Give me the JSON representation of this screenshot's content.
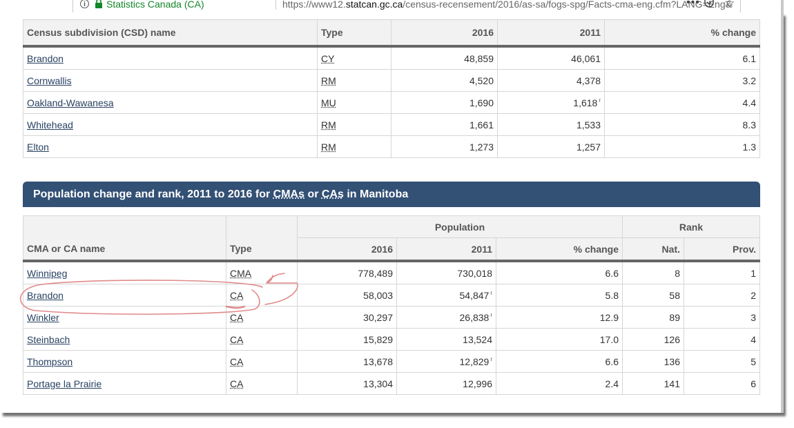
{
  "browser": {
    "site_identity": "Statistics Canada (CA)",
    "url_prefix": "https://www12.",
    "url_domain": "statcan.gc.ca",
    "url_rest": "/census-recensement/2016/as-sa/fogs-spg/Facts-cma-eng.cfm?LANG=Eng&G"
  },
  "csd_table": {
    "headers": [
      "Census subdivision (CSD) name",
      "Type",
      "2016",
      "2011",
      "% change"
    ],
    "rows": [
      {
        "name": "Brandon",
        "type": "CY",
        "pop2016": "48,859",
        "pop2011": "46,061",
        "change": "6.1",
        "note2011": ""
      },
      {
        "name": "Cornwallis",
        "type": "RM",
        "pop2016": "4,520",
        "pop2011": "4,378",
        "change": "3.2",
        "note2011": ""
      },
      {
        "name": "Oakland-Wawanesa",
        "type": "MU",
        "pop2016": "1,690",
        "pop2011": "1,618",
        "change": "4.4",
        "note2011": "r"
      },
      {
        "name": "Whitehead",
        "type": "RM",
        "pop2016": "1,661",
        "pop2011": "1,533",
        "change": "8.3",
        "note2011": ""
      },
      {
        "name": "Elton",
        "type": "RM",
        "pop2016": "1,273",
        "pop2011": "1,257",
        "change": "1.3",
        "note2011": ""
      }
    ]
  },
  "cma_section": {
    "caption_start": "Population change and rank, 2011 to 2016 for ",
    "caption_abbr1": "CMAs",
    "caption_mid": " or ",
    "caption_abbr2": "CAs",
    "caption_end": " in Manitoba"
  },
  "cma_table": {
    "group_population": "Population",
    "group_rank": "Rank",
    "headers": [
      "CMA or CA name",
      "Type",
      "2016",
      "2011",
      "% change",
      "Nat.",
      "Prov."
    ],
    "rows": [
      {
        "name": "Winnipeg",
        "type": "CMA",
        "pop2016": "778,489",
        "pop2011": "730,018",
        "change": "6.6",
        "nat": "8",
        "prov": "1",
        "note2011": ""
      },
      {
        "name": "Brandon",
        "type": "CA",
        "pop2016": "58,003",
        "pop2011": "54,847",
        "change": "5.8",
        "nat": "58",
        "prov": "2",
        "note2011": "r"
      },
      {
        "name": "Winkler",
        "type": "CA",
        "pop2016": "30,297",
        "pop2011": "26,838",
        "change": "12.9",
        "nat": "89",
        "prov": "3",
        "note2011": "r"
      },
      {
        "name": "Steinbach",
        "type": "CA",
        "pop2016": "15,829",
        "pop2011": "13,524",
        "change": "17.0",
        "nat": "126",
        "prov": "4",
        "note2011": ""
      },
      {
        "name": "Thompson",
        "type": "CA",
        "pop2016": "13,678",
        "pop2011": "12,829",
        "change": "6.6",
        "nat": "136",
        "prov": "5",
        "note2011": "r"
      },
      {
        "name": "Portage la Prairie",
        "type": "CA",
        "pop2016": "13,304",
        "pop2011": "12,996",
        "change": "2.4",
        "nat": "141",
        "prov": "6",
        "note2011": ""
      }
    ]
  },
  "colors": {
    "caption_band": "#335075",
    "link": "#284162",
    "annotation": "#e08a8a",
    "secure": "#12872a"
  },
  "icons": [
    "info-icon",
    "lock-icon",
    "more-icon",
    "pocket-icon",
    "star-icon"
  ]
}
